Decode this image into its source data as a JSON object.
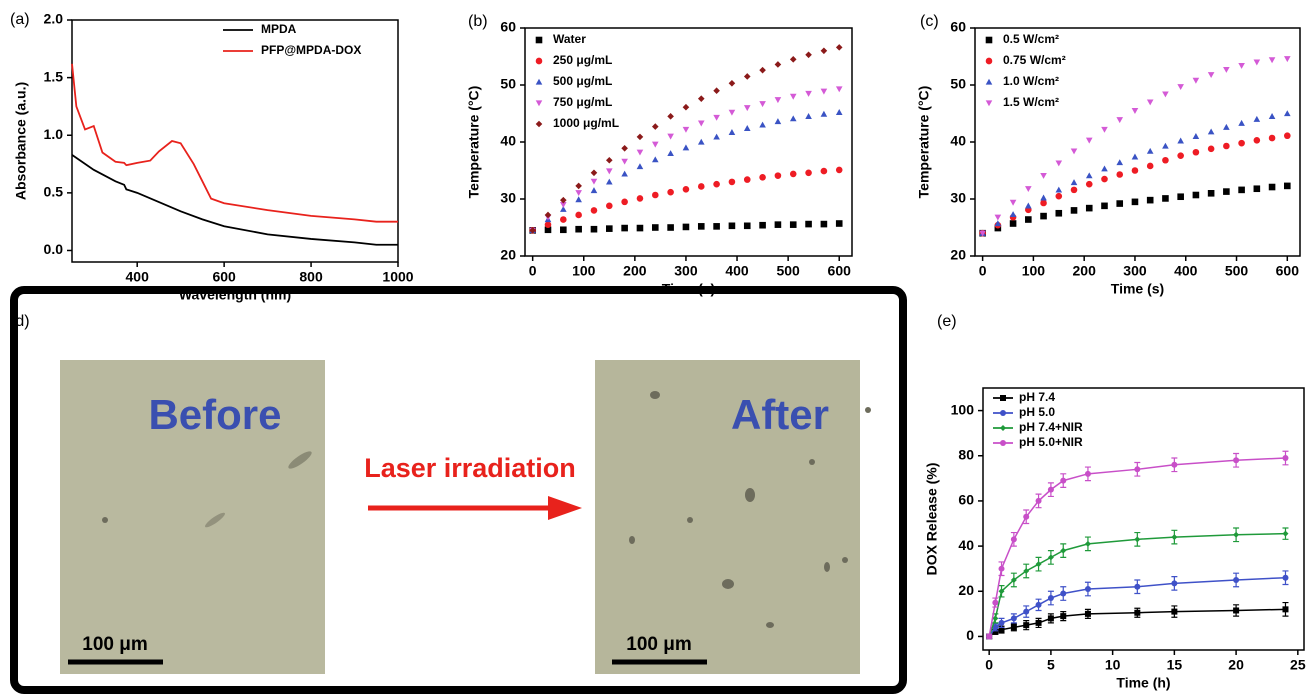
{
  "chart_data": [
    {
      "type": "line",
      "label": "(a)",
      "xlabel": "Wavelength (nm)",
      "ylabel": "Absorbance (a.u.)",
      "xlim": [
        250,
        1000
      ],
      "xticks": [
        400,
        600,
        800,
        1000
      ],
      "ylim": [
        -0.1,
        2.0
      ],
      "yticks": [
        {
          "value": 0,
          "label": "0.0"
        },
        0.5,
        {
          "value": 1,
          "label": "1.0"
        },
        1.5,
        {
          "value": 2,
          "label": "2.0"
        }
      ],
      "legend": "upper right",
      "series": [
        {
          "name": "MPDA",
          "color": "#000000",
          "x": [
            250,
            300,
            350,
            370,
            375,
            400,
            450,
            500,
            550,
            600,
            700,
            800,
            900,
            950,
            1000
          ],
          "values": [
            0.83,
            0.7,
            0.6,
            0.57,
            0.53,
            0.5,
            0.42,
            0.34,
            0.27,
            0.21,
            0.14,
            0.1,
            0.07,
            0.05,
            0.05
          ]
        },
        {
          "name": "PFP@MPDA-DOX",
          "color": "#e8221c",
          "x": [
            250,
            260,
            280,
            300,
            320,
            350,
            370,
            375,
            400,
            430,
            450,
            480,
            500,
            530,
            550,
            570,
            600,
            700,
            800,
            900,
            950,
            1000
          ],
          "values": [
            1.62,
            1.25,
            1.05,
            1.08,
            0.85,
            0.77,
            0.76,
            0.74,
            0.76,
            0.78,
            0.86,
            0.95,
            0.93,
            0.75,
            0.6,
            0.45,
            0.41,
            0.35,
            0.3,
            0.27,
            0.25,
            0.25
          ]
        }
      ]
    },
    {
      "type": "scatter",
      "label": "(b)",
      "xlabel": "Time (s)",
      "ylabel": "Temperature (°C)",
      "xlim": [
        -15,
        625
      ],
      "xticks": [
        0,
        100,
        200,
        300,
        400,
        500,
        600
      ],
      "ylim": [
        20,
        60
      ],
      "yticks": [
        20,
        30,
        40,
        50,
        60
      ],
      "legend": "upper left",
      "x": [
        0,
        30,
        60,
        90,
        120,
        150,
        180,
        210,
        240,
        270,
        300,
        330,
        360,
        390,
        420,
        450,
        480,
        510,
        540,
        570,
        600
      ],
      "series": [
        {
          "name": "Water",
          "color": "#000000",
          "marker": "square",
          "values": [
            24.5,
            24.6,
            24.6,
            24.7,
            24.7,
            24.8,
            24.9,
            24.9,
            25.0,
            25.0,
            25.1,
            25.2,
            25.2,
            25.3,
            25.3,
            25.4,
            25.5,
            25.5,
            25.6,
            25.6,
            25.7
          ]
        },
        {
          "name": "250 μg/mL",
          "color": "#ee1c24",
          "marker": "circle",
          "values": [
            24.5,
            25.5,
            26.4,
            27.2,
            28,
            28.8,
            29.5,
            30.1,
            30.7,
            31.2,
            31.7,
            32.2,
            32.6,
            33,
            33.4,
            33.8,
            34.1,
            34.4,
            34.6,
            34.9,
            35.1
          ]
        },
        {
          "name": "500 μg/mL",
          "color": "#3a53c4",
          "marker": "triangle-up",
          "values": [
            24.5,
            26.4,
            28.2,
            29.9,
            31.5,
            33,
            34.4,
            35.7,
            36.9,
            38,
            39,
            40,
            40.9,
            41.7,
            42.4,
            43,
            43.6,
            44.1,
            44.5,
            44.9,
            45.2
          ]
        },
        {
          "name": "750 μg/mL",
          "color": "#d45ad6",
          "marker": "triangle-down",
          "values": [
            24.5,
            26.8,
            29,
            31.1,
            33.1,
            34.9,
            36.6,
            38.2,
            39.6,
            41,
            42.2,
            43.3,
            44.3,
            45.2,
            46,
            46.7,
            47.4,
            48,
            48.5,
            48.9,
            49.3
          ]
        },
        {
          "name": "1000 μg/mL",
          "color": "#8b1a1a",
          "marker": "diamond",
          "values": [
            24.5,
            27.2,
            29.8,
            32.3,
            34.6,
            36.8,
            38.9,
            40.9,
            42.7,
            44.5,
            46.1,
            47.6,
            49,
            50.3,
            51.5,
            52.6,
            53.6,
            54.5,
            55.3,
            56,
            56.6
          ]
        }
      ]
    },
    {
      "type": "scatter",
      "label": "(c)",
      "xlabel": "Time (s)",
      "ylabel": "Temperature (°C)",
      "xlim": [
        -15,
        625
      ],
      "xticks": [
        0,
        100,
        200,
        300,
        400,
        500,
        600
      ],
      "ylim": [
        20,
        60
      ],
      "yticks": [
        20,
        30,
        40,
        50,
        60
      ],
      "legend": "upper left",
      "x": [
        0,
        30,
        60,
        90,
        120,
        150,
        180,
        210,
        240,
        270,
        300,
        330,
        360,
        390,
        420,
        450,
        480,
        510,
        540,
        570,
        600
      ],
      "series": [
        {
          "name": "0.5 W/cm²",
          "color": "#000000",
          "marker": "square",
          "values": [
            24,
            24.9,
            25.7,
            26.4,
            27,
            27.5,
            28,
            28.4,
            28.8,
            29.2,
            29.5,
            29.8,
            30.1,
            30.4,
            30.7,
            31,
            31.3,
            31.6,
            31.8,
            32.1,
            32.3
          ]
        },
        {
          "name": "0.75 W/cm²",
          "color": "#ee1c24",
          "marker": "circle",
          "values": [
            24,
            25.4,
            26.8,
            28.1,
            29.3,
            30.5,
            31.6,
            32.6,
            33.5,
            34.3,
            35,
            35.8,
            36.8,
            37.6,
            38.2,
            38.8,
            39.3,
            39.8,
            40.3,
            40.7,
            41.1
          ]
        },
        {
          "name": "1.0 W/cm²",
          "color": "#3a53c4",
          "marker": "triangle-up",
          "values": [
            24,
            25.7,
            27.3,
            28.8,
            30.2,
            31.6,
            32.9,
            34.1,
            35.3,
            36.4,
            37.4,
            38.4,
            39.3,
            40.2,
            41,
            41.8,
            42.6,
            43.3,
            44,
            44.5,
            45
          ]
        },
        {
          "name": "1.5 W/cm²",
          "color": "#d45ad6",
          "marker": "triangle-down",
          "values": [
            24,
            26.8,
            29.4,
            31.8,
            34.1,
            36.3,
            38.4,
            40.3,
            42.2,
            43.9,
            45.5,
            47,
            48.4,
            49.7,
            50.8,
            51.8,
            52.7,
            53.4,
            54,
            54.4,
            54.6
          ]
        }
      ]
    },
    {
      "type": "line",
      "label": "(e)",
      "xlabel": "Time (h)",
      "ylabel": "DOX Release (%)",
      "xlim": [
        -0.5,
        25.5
      ],
      "xticks": [
        0,
        5,
        10,
        15,
        20,
        25
      ],
      "ylim": [
        -6,
        110
      ],
      "yticks": [
        0,
        20,
        40,
        60,
        80,
        100
      ],
      "legend": "upper left",
      "x": [
        0,
        0.5,
        1,
        2,
        3,
        4,
        5,
        6,
        8,
        12,
        15,
        20,
        24
      ],
      "series": [
        {
          "name": "pH 7.4",
          "color": "#000000",
          "marker": "square",
          "values": [
            0,
            2,
            3,
            4,
            5,
            6,
            8,
            9,
            10,
            10.5,
            11,
            11.5,
            12
          ],
          "errors": [
            1,
            1,
            1.5,
            1.5,
            2,
            2,
            2,
            2,
            2,
            2,
            2.5,
            2.5,
            3
          ]
        },
        {
          "name": "pH 5.0",
          "color": "#3f51c8",
          "marker": "circle",
          "values": [
            0,
            4,
            6,
            8,
            11,
            14,
            17,
            19,
            21,
            22,
            23.5,
            25,
            26
          ],
          "errors": [
            1,
            1.5,
            2,
            2,
            2.5,
            2.5,
            3,
            3,
            3,
            3,
            3,
            3,
            3
          ]
        },
        {
          "name": "pH 7.4+NIR",
          "color": "#1f9a3a",
          "marker": "diamond",
          "values": [
            0,
            8,
            20,
            25,
            29,
            32,
            35,
            38,
            41,
            43,
            44,
            45,
            45.5
          ],
          "errors": [
            1,
            2,
            2.5,
            3,
            3,
            3,
            3,
            3,
            3,
            3,
            3,
            3,
            2.5
          ]
        },
        {
          "name": "pH 5.0+NIR",
          "color": "#c84fc8",
          "marker": "circle",
          "values": [
            0,
            15,
            30,
            43,
            53,
            60,
            65,
            69,
            72,
            74,
            76,
            78,
            79
          ],
          "errors": [
            1,
            2,
            3,
            3,
            3,
            3,
            3,
            3,
            3,
            3,
            3,
            3,
            3
          ]
        }
      ]
    }
  ],
  "panel_d": {
    "label": "(d)",
    "left_title": "Before",
    "right_title": "After",
    "arrow_label": "Laser irradiation",
    "left_scale": "100 μm",
    "right_scale": "100 μm"
  }
}
